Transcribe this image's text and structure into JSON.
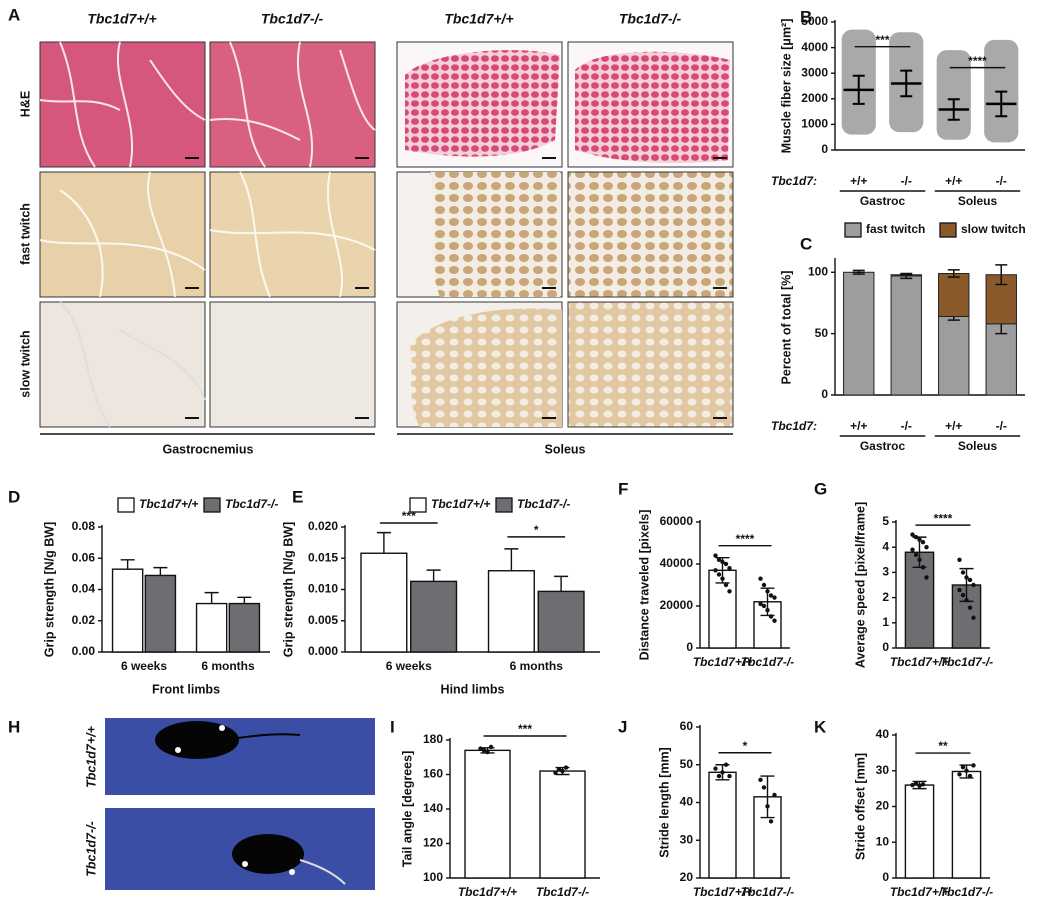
{
  "panel_a": {
    "panel": "A",
    "columns": [
      "Tbc1d7+/+",
      "Tbc1d7-/-",
      "Tbc1d7+/+",
      "Tbc1d7-/-"
    ],
    "rows": [
      "H&E",
      "fast twitch",
      "slow twitch"
    ],
    "muscles": [
      "Gastrocnemius",
      "Soleus"
    ]
  },
  "panel_h": {
    "panel": "H",
    "rows": [
      "Tbc1d7+/+",
      "Tbc1d7-/-"
    ]
  },
  "chart_data": [
    {
      "panel": "B",
      "type": "dot",
      "ylabel": "Muscle fiber size [μm²]",
      "row_label": "Tbc1d7:",
      "categories": [
        "+/+",
        "-/-",
        "+/+",
        "-/-"
      ],
      "groups": [
        "Gastroc",
        "Soleus"
      ],
      "values": [
        2350,
        2600,
        1580,
        1800
      ],
      "errors": [
        550,
        500,
        400,
        480
      ],
      "ranges": [
        [
          600,
          4700
        ],
        [
          700,
          4600
        ],
        [
          400,
          3900
        ],
        [
          300,
          4300
        ]
      ],
      "color": "#6f6f6f",
      "ylim": [
        0,
        5000
      ],
      "yticks": [
        0,
        1000,
        2000,
        3000,
        4000,
        5000
      ],
      "annotations": [
        "***",
        "****"
      ]
    },
    {
      "panel": "C",
      "type": "stacked_bar",
      "ylabel": "Percent of total [%]",
      "row_label": "Tbc1d7:",
      "categories": [
        "+/+",
        "-/-",
        "+/+",
        "-/-"
      ],
      "groups": [
        "Gastroc",
        "Soleus"
      ],
      "series": [
        {
          "name": "fast twitch",
          "color": "#9d9d9f",
          "values": [
            100,
            97,
            64,
            58
          ],
          "errors": [
            1.5,
            2,
            3,
            8
          ]
        },
        {
          "name": "slow twitch",
          "color": "#8b5a2b",
          "values": [
            0,
            1,
            35,
            40
          ],
          "errors": [
            0,
            0,
            3,
            8
          ]
        }
      ],
      "ylim": [
        0,
        110
      ],
      "yticks": [
        0,
        50,
        100
      ],
      "legend": "top"
    },
    {
      "panel": "D",
      "type": "bar",
      "ylabel": "Grip strength [N/g BW]",
      "xlabel": "Front limbs",
      "categories": [
        "6 weeks",
        "6 months"
      ],
      "series": [
        {
          "name": "Tbc1d7+/+",
          "color": "#ffffff",
          "values": [
            0.053,
            0.031
          ],
          "errors": [
            0.006,
            0.007
          ]
        },
        {
          "name": "Tbc1d7-/-",
          "color": "#6d6e71",
          "values": [
            0.049,
            0.031
          ],
          "errors": [
            0.005,
            0.004
          ]
        }
      ],
      "ylim": [
        0,
        0.08
      ],
      "yticks": [
        {
          "value": 0,
          "label": "0.00"
        },
        0.02,
        0.04,
        0.06,
        0.08
      ],
      "legend": "top"
    },
    {
      "panel": "E",
      "type": "bar",
      "ylabel": "Grip strength [N/g BW]",
      "xlabel": "Hind limbs",
      "categories": [
        "6 weeks",
        "6 months"
      ],
      "series": [
        {
          "name": "Tbc1d7+/+",
          "color": "#ffffff",
          "values": [
            0.0158,
            0.013
          ],
          "errors": [
            0.0033,
            0.0035
          ]
        },
        {
          "name": "Tbc1d7-/-",
          "color": "#6d6e71",
          "values": [
            0.0113,
            0.0097
          ],
          "errors": [
            0.0018,
            0.0024
          ]
        }
      ],
      "ylim": [
        0,
        0.02
      ],
      "yticks": [
        {
          "value": 0,
          "label": "0.000"
        },
        {
          "value": 0.005,
          "label": "0.005"
        },
        {
          "value": 0.01,
          "label": "0.010"
        },
        {
          "value": 0.015,
          "label": "0.015"
        },
        {
          "value": 0.02,
          "label": "0.020"
        }
      ],
      "legend": "top",
      "annotations": [
        "***",
        "*"
      ]
    },
    {
      "panel": "F",
      "type": "bar",
      "ylabel": "Distance traveled [pixels]",
      "categories": [
        "Tbc1d7+/+",
        "Tbc1d7-/-"
      ],
      "values": [
        37000,
        22000
      ],
      "errors": [
        6000,
        6500
      ],
      "points": [
        [
          44000,
          42000,
          41000,
          40000,
          38000,
          37000,
          35000,
          33000,
          30000,
          27000
        ],
        [
          33000,
          30000,
          27000,
          25000,
          24000,
          21000,
          20000,
          18000,
          15000,
          13000
        ]
      ],
      "color": "#ffffff",
      "ylim": [
        0,
        60000
      ],
      "yticks": [
        0,
        20000,
        40000,
        60000
      ],
      "annotations": [
        "****"
      ]
    },
    {
      "panel": "G",
      "type": "bar",
      "ylabel": "Average speed [pixel/frame]",
      "categories": [
        "Tbc1d7+/+",
        "Tbc1d7-/-"
      ],
      "values": [
        3.8,
        2.5
      ],
      "errors": [
        0.6,
        0.65
      ],
      "points": [
        [
          4.5,
          4.4,
          4.3,
          4.2,
          4.0,
          3.9,
          3.7,
          3.5,
          3.2,
          2.8
        ],
        [
          3.5,
          3.0,
          2.8,
          2.7,
          2.5,
          2.3,
          2.1,
          1.9,
          1.6,
          1.2
        ]
      ],
      "color": "#6d6e71",
      "ylim": [
        0,
        5
      ],
      "yticks": [
        0,
        1,
        2,
        3,
        4,
        5
      ],
      "annotations": [
        "****"
      ]
    },
    {
      "panel": "I",
      "type": "bar",
      "ylabel": "Tail angle [degrees]",
      "categories": [
        "Tbc1d7+/+",
        "Tbc1d7-/-"
      ],
      "values": [
        174,
        162
      ],
      "errors": [
        1.5,
        2
      ],
      "points": [
        [
          175,
          174,
          173,
          176
        ],
        [
          161,
          163,
          162,
          164
        ]
      ],
      "color": "#ffffff",
      "ylim": [
        100,
        180
      ],
      "yticks": [
        100,
        120,
        140,
        160,
        180
      ],
      "annotations": [
        "***"
      ]
    },
    {
      "panel": "J",
      "type": "bar",
      "ylabel": "Stride length [mm]",
      "categories": [
        "Tbc1d7+/+",
        "Tbc1d7-/-"
      ],
      "values": [
        48,
        41.5
      ],
      "errors": [
        2,
        5.5
      ],
      "points": [
        [
          49,
          47,
          48,
          50,
          47
        ],
        [
          46,
          44,
          39,
          35,
          42
        ]
      ],
      "color": "#ffffff",
      "ylim": [
        20,
        60
      ],
      "yticks": [
        20,
        30,
        40,
        50,
        60
      ],
      "annotations": [
        "*"
      ]
    },
    {
      "panel": "K",
      "type": "bar",
      "ylabel": "Stride offset [mm]",
      "categories": [
        "Tbc1d7+/+",
        "Tbc1d7-/-"
      ],
      "values": [
        26,
        29.8
      ],
      "errors": [
        1,
        1.8
      ],
      "points": [
        [
          26,
          26.5,
          25.8,
          26.2
        ],
        [
          29,
          31,
          30,
          28.5,
          31.5
        ]
      ],
      "color": "#ffffff",
      "ylim": [
        0,
        40
      ],
      "yticks": [
        0,
        10,
        20,
        30,
        40
      ],
      "annotations": [
        "**"
      ]
    }
  ]
}
